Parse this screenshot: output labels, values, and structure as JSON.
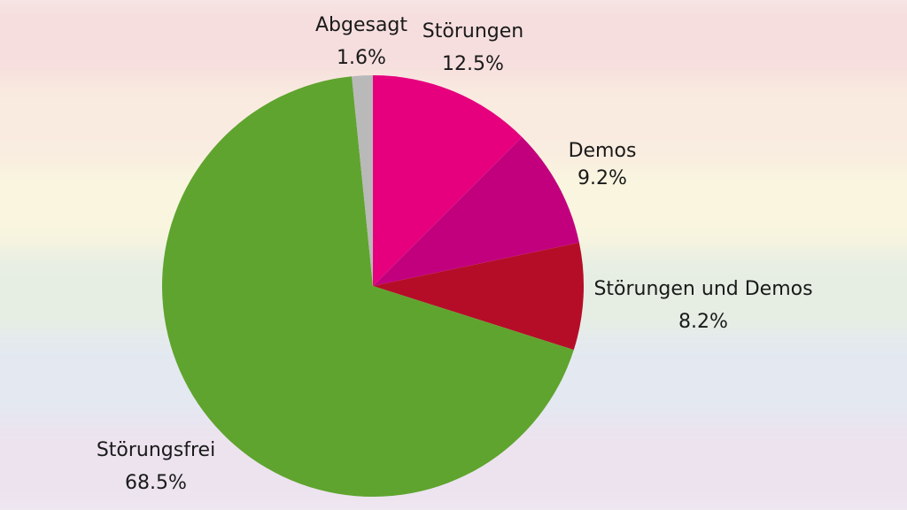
{
  "chart_data": {
    "type": "pie",
    "start_angle_deg": 0,
    "direction": "clockwise",
    "slices": [
      {
        "label": "Störungen",
        "value": 12.5,
        "display": "12.5%",
        "color": "#e6007e"
      },
      {
        "label": "Demos",
        "value": 9.2,
        "display": "9.2%",
        "color": "#c2007e"
      },
      {
        "label": "Störungen und Demos",
        "value": 8.2,
        "display": "8.2%",
        "color": "#b50d28"
      },
      {
        "label": "Störungsfrei",
        "value": 68.5,
        "display": "68.5%",
        "color": "#5fa42e"
      },
      {
        "label": "Abgesagt",
        "value": 1.6,
        "display": "1.6%",
        "color": "#b9b9b9"
      }
    ]
  },
  "background": {
    "style": "faded rainbow flag",
    "band_colors": [
      "#f6dede",
      "#f9ebe0",
      "#f9f5df",
      "#e6eee3",
      "#e3e8f1",
      "#ece3ef"
    ]
  }
}
